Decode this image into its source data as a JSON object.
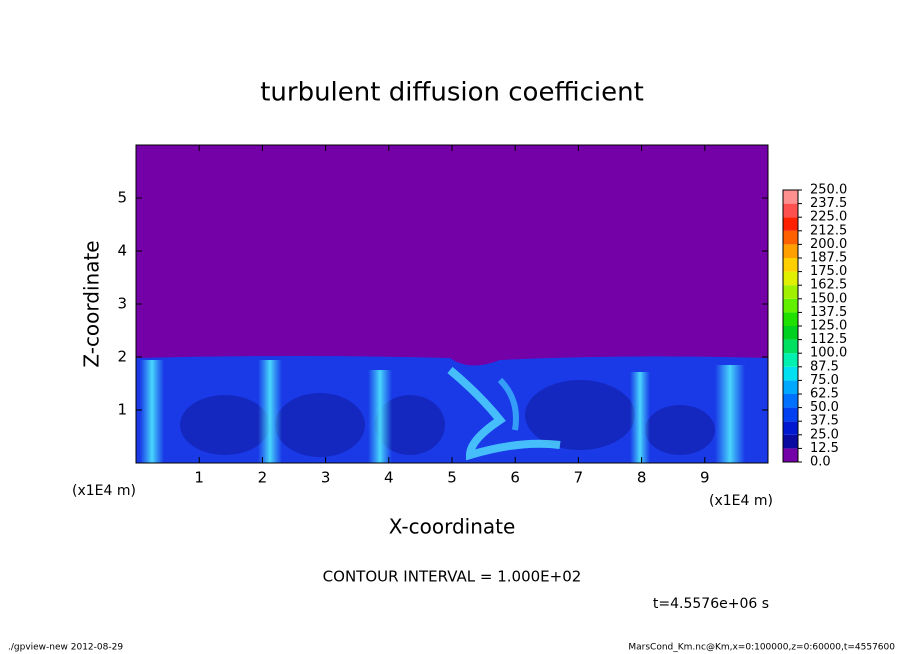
{
  "chart_data": {
    "type": "contour",
    "title": "turbulent diffusion coefficient",
    "x_label": "X-coordinate",
    "y_label": "Z-coordinate",
    "x_unit": "(x1E4 m)",
    "y_unit": "(x1E4 m)",
    "xlim": [
      0,
      10
    ],
    "ylim": [
      0,
      6
    ],
    "xticks": [
      1,
      2,
      3,
      4,
      5,
      6,
      7,
      8,
      9
    ],
    "yticks": [
      1,
      2,
      3,
      4,
      5
    ],
    "contour_interval": "CONTOUR INTERVAL = 1.000E+02",
    "time": "t=4.5576e+06 s",
    "levels": [
      {
        "value": 0,
        "label": "0.0"
      },
      12.5,
      {
        "value": 25,
        "label": "25.0"
      },
      37.5,
      {
        "value": 50,
        "label": "50.0"
      },
      62.5,
      {
        "value": 75,
        "label": "75.0"
      },
      87.5,
      {
        "value": 100,
        "label": "100.0"
      },
      112.5,
      {
        "value": 125,
        "label": "125.0"
      },
      137.5,
      {
        "value": 150,
        "label": "150.0"
      },
      162.5,
      {
        "value": 175,
        "label": "175.0"
      },
      187.5,
      {
        "value": 200,
        "label": "200.0"
      },
      212.5,
      {
        "value": 225,
        "label": "225.0"
      },
      237.5,
      {
        "value": 250,
        "label": "250.0"
      }
    ],
    "level_colors": [
      "#7400a8",
      "#0a0aa0",
      "#0018d0",
      "#0040f0",
      "#0070ff",
      "#00a8ff",
      "#00e0f0",
      "#00f0b0",
      "#00e060",
      "#00d020",
      "#20e000",
      "#60f000",
      "#a0f000",
      "#e0f000",
      "#ffd000",
      "#ffa000",
      "#ff6000",
      "#ff2000",
      "#ff5050",
      "#ff9090"
    ],
    "footer_left": "./gpview-new  2012-08-29",
    "footer_right": "MarsCond_Km.nc@Km,x=0:100000,z=0:60000,t=4557600"
  }
}
